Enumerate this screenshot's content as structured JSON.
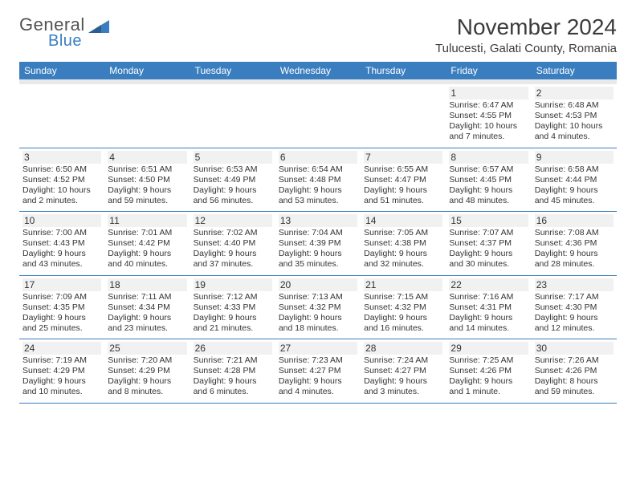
{
  "brand": {
    "text1": "General",
    "text2": "Blue"
  },
  "title": "November 2024",
  "location": "Tulucesti, Galati County, Romania",
  "colors": {
    "accent": "#3a7ebf",
    "header_bg": "#3a7ebf",
    "text": "#333333",
    "bg": "#ffffff",
    "row_alt": "#f1f1f1"
  },
  "dow": [
    "Sunday",
    "Monday",
    "Tuesday",
    "Wednesday",
    "Thursday",
    "Friday",
    "Saturday"
  ],
  "weeks": [
    [
      null,
      null,
      null,
      null,
      null,
      {
        "n": "1",
        "sr": "Sunrise: 6:47 AM",
        "ss": "Sunset: 4:55 PM",
        "d1": "Daylight: 10 hours",
        "d2": "and 7 minutes."
      },
      {
        "n": "2",
        "sr": "Sunrise: 6:48 AM",
        "ss": "Sunset: 4:53 PM",
        "d1": "Daylight: 10 hours",
        "d2": "and 4 minutes."
      }
    ],
    [
      {
        "n": "3",
        "sr": "Sunrise: 6:50 AM",
        "ss": "Sunset: 4:52 PM",
        "d1": "Daylight: 10 hours",
        "d2": "and 2 minutes."
      },
      {
        "n": "4",
        "sr": "Sunrise: 6:51 AM",
        "ss": "Sunset: 4:50 PM",
        "d1": "Daylight: 9 hours",
        "d2": "and 59 minutes."
      },
      {
        "n": "5",
        "sr": "Sunrise: 6:53 AM",
        "ss": "Sunset: 4:49 PM",
        "d1": "Daylight: 9 hours",
        "d2": "and 56 minutes."
      },
      {
        "n": "6",
        "sr": "Sunrise: 6:54 AM",
        "ss": "Sunset: 4:48 PM",
        "d1": "Daylight: 9 hours",
        "d2": "and 53 minutes."
      },
      {
        "n": "7",
        "sr": "Sunrise: 6:55 AM",
        "ss": "Sunset: 4:47 PM",
        "d1": "Daylight: 9 hours",
        "d2": "and 51 minutes."
      },
      {
        "n": "8",
        "sr": "Sunrise: 6:57 AM",
        "ss": "Sunset: 4:45 PM",
        "d1": "Daylight: 9 hours",
        "d2": "and 48 minutes."
      },
      {
        "n": "9",
        "sr": "Sunrise: 6:58 AM",
        "ss": "Sunset: 4:44 PM",
        "d1": "Daylight: 9 hours",
        "d2": "and 45 minutes."
      }
    ],
    [
      {
        "n": "10",
        "sr": "Sunrise: 7:00 AM",
        "ss": "Sunset: 4:43 PM",
        "d1": "Daylight: 9 hours",
        "d2": "and 43 minutes."
      },
      {
        "n": "11",
        "sr": "Sunrise: 7:01 AM",
        "ss": "Sunset: 4:42 PM",
        "d1": "Daylight: 9 hours",
        "d2": "and 40 minutes."
      },
      {
        "n": "12",
        "sr": "Sunrise: 7:02 AM",
        "ss": "Sunset: 4:40 PM",
        "d1": "Daylight: 9 hours",
        "d2": "and 37 minutes."
      },
      {
        "n": "13",
        "sr": "Sunrise: 7:04 AM",
        "ss": "Sunset: 4:39 PM",
        "d1": "Daylight: 9 hours",
        "d2": "and 35 minutes."
      },
      {
        "n": "14",
        "sr": "Sunrise: 7:05 AM",
        "ss": "Sunset: 4:38 PM",
        "d1": "Daylight: 9 hours",
        "d2": "and 32 minutes."
      },
      {
        "n": "15",
        "sr": "Sunrise: 7:07 AM",
        "ss": "Sunset: 4:37 PM",
        "d1": "Daylight: 9 hours",
        "d2": "and 30 minutes."
      },
      {
        "n": "16",
        "sr": "Sunrise: 7:08 AM",
        "ss": "Sunset: 4:36 PM",
        "d1": "Daylight: 9 hours",
        "d2": "and 28 minutes."
      }
    ],
    [
      {
        "n": "17",
        "sr": "Sunrise: 7:09 AM",
        "ss": "Sunset: 4:35 PM",
        "d1": "Daylight: 9 hours",
        "d2": "and 25 minutes."
      },
      {
        "n": "18",
        "sr": "Sunrise: 7:11 AM",
        "ss": "Sunset: 4:34 PM",
        "d1": "Daylight: 9 hours",
        "d2": "and 23 minutes."
      },
      {
        "n": "19",
        "sr": "Sunrise: 7:12 AM",
        "ss": "Sunset: 4:33 PM",
        "d1": "Daylight: 9 hours",
        "d2": "and 21 minutes."
      },
      {
        "n": "20",
        "sr": "Sunrise: 7:13 AM",
        "ss": "Sunset: 4:32 PM",
        "d1": "Daylight: 9 hours",
        "d2": "and 18 minutes."
      },
      {
        "n": "21",
        "sr": "Sunrise: 7:15 AM",
        "ss": "Sunset: 4:32 PM",
        "d1": "Daylight: 9 hours",
        "d2": "and 16 minutes."
      },
      {
        "n": "22",
        "sr": "Sunrise: 7:16 AM",
        "ss": "Sunset: 4:31 PM",
        "d1": "Daylight: 9 hours",
        "d2": "and 14 minutes."
      },
      {
        "n": "23",
        "sr": "Sunrise: 7:17 AM",
        "ss": "Sunset: 4:30 PM",
        "d1": "Daylight: 9 hours",
        "d2": "and 12 minutes."
      }
    ],
    [
      {
        "n": "24",
        "sr": "Sunrise: 7:19 AM",
        "ss": "Sunset: 4:29 PM",
        "d1": "Daylight: 9 hours",
        "d2": "and 10 minutes."
      },
      {
        "n": "25",
        "sr": "Sunrise: 7:20 AM",
        "ss": "Sunset: 4:29 PM",
        "d1": "Daylight: 9 hours",
        "d2": "and 8 minutes."
      },
      {
        "n": "26",
        "sr": "Sunrise: 7:21 AM",
        "ss": "Sunset: 4:28 PM",
        "d1": "Daylight: 9 hours",
        "d2": "and 6 minutes."
      },
      {
        "n": "27",
        "sr": "Sunrise: 7:23 AM",
        "ss": "Sunset: 4:27 PM",
        "d1": "Daylight: 9 hours",
        "d2": "and 4 minutes."
      },
      {
        "n": "28",
        "sr": "Sunrise: 7:24 AM",
        "ss": "Sunset: 4:27 PM",
        "d1": "Daylight: 9 hours",
        "d2": "and 3 minutes."
      },
      {
        "n": "29",
        "sr": "Sunrise: 7:25 AM",
        "ss": "Sunset: 4:26 PM",
        "d1": "Daylight: 9 hours",
        "d2": "and 1 minute."
      },
      {
        "n": "30",
        "sr": "Sunrise: 7:26 AM",
        "ss": "Sunset: 4:26 PM",
        "d1": "Daylight: 8 hours",
        "d2": "and 59 minutes."
      }
    ]
  ]
}
